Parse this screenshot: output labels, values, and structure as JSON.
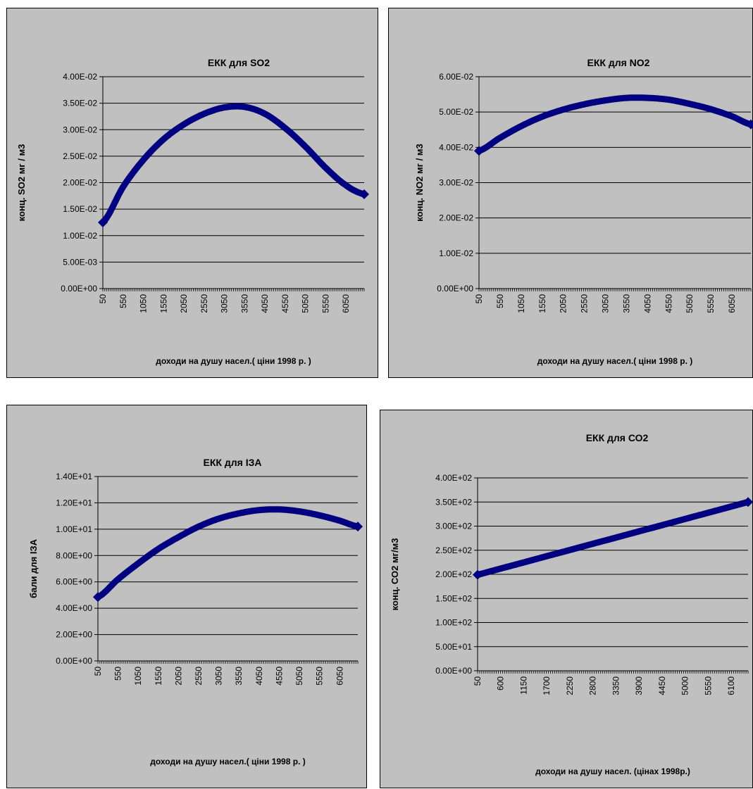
{
  "chart_data": [
    {
      "type": "line",
      "title": "ЕКК для SO2",
      "xlabel": "доходи на душу насел.( ціни 1998 р. )",
      "ylabel": "конц. SO2 мг / м3",
      "yticks": [
        "0.00E+00",
        "5.00E-03",
        "1.00E-02",
        "1.50E-02",
        "2.00E-02",
        "2.50E-02",
        "3.00E-02",
        "3.50E-02",
        "4.00E-02"
      ],
      "xticks": [
        "50",
        "550",
        "1050",
        "1550",
        "2050",
        "2550",
        "3050",
        "3550",
        "4050",
        "4550",
        "5050",
        "5550",
        "6050"
      ],
      "ylim": [
        0,
        0.04
      ],
      "xlim": [
        50,
        6500
      ],
      "grid": true,
      "legend": "none",
      "color": "#000080",
      "series": [
        {
          "x": [
            50,
            550,
            1050,
            1550,
            2050,
            2550,
            3050,
            3550,
            4050,
            4550,
            5050,
            5550,
            6050,
            6500
          ],
          "y": [
            0.0125,
            0.0192,
            0.0243,
            0.0282,
            0.031,
            0.033,
            0.0342,
            0.0343,
            0.033,
            0.0303,
            0.0268,
            0.0228,
            0.0195,
            0.0178
          ]
        }
      ]
    },
    {
      "type": "line",
      "title": "ЕКК для NO2",
      "xlabel": "доходи на душу насел.( ціни 1998 р. )",
      "ylabel": "конц. NO2 мг / м3",
      "yticks": [
        "0.00E+00",
        "1.00E-02",
        "2.00E-02",
        "3.00E-02",
        "4.00E-02",
        "5.00E-02",
        "6.00E-02"
      ],
      "xticks": [
        "50",
        "550",
        "1050",
        "1550",
        "2050",
        "2550",
        "3050",
        "3550",
        "4050",
        "4550",
        "5050",
        "5550",
        "6050"
      ],
      "ylim": [
        0,
        0.06
      ],
      "xlim": [
        50,
        6500
      ],
      "grid": true,
      "legend": "none",
      "color": "#000080",
      "series": [
        {
          "x": [
            50,
            550,
            1050,
            1550,
            2050,
            2550,
            3050,
            3550,
            4050,
            4550,
            5050,
            5550,
            6050,
            6500
          ],
          "y": [
            0.039,
            0.0427,
            0.046,
            0.0487,
            0.0507,
            0.0522,
            0.0533,
            0.054,
            0.054,
            0.0535,
            0.0523,
            0.0508,
            0.0488,
            0.0465
          ]
        }
      ]
    },
    {
      "type": "line",
      "title": "ЕКК для ІЗА",
      "xlabel": "доходи на душу насел.( ціни 1998 р. )",
      "ylabel": "бали для ІЗА",
      "yticks": [
        "0.00E+00",
        "2.00E+00",
        "4.00E+00",
        "6.00E+00",
        "8.00E+00",
        "1.00E+01",
        "1.20E+01",
        "1.40E+01"
      ],
      "xticks": [
        "50",
        "550",
        "1050",
        "1550",
        "2050",
        "2550",
        "3050",
        "3550",
        "4050",
        "4550",
        "5050",
        "5550",
        "6050"
      ],
      "ylim": [
        0,
        14
      ],
      "xlim": [
        50,
        6500
      ],
      "grid": true,
      "legend": "none",
      "color": "#000080",
      "series": [
        {
          "x": [
            50,
            550,
            1050,
            1550,
            2050,
            2550,
            3050,
            3550,
            4050,
            4550,
            5050,
            5550,
            6050,
            6500
          ],
          "y": [
            4.85,
            6.2,
            7.4,
            8.5,
            9.4,
            10.2,
            10.8,
            11.2,
            11.45,
            11.5,
            11.35,
            11.05,
            10.65,
            10.2
          ]
        }
      ]
    },
    {
      "type": "line",
      "title": "ЕКК для СО2",
      "xlabel": "доходи на душу насел. (цінах 1998р.)",
      "ylabel": "конц. СО2 мг/м3",
      "yticks": [
        "0.00E+00",
        "5.00E+01",
        "1.00E+02",
        "1.50E+02",
        "2.00E+02",
        "2.50E+02",
        "3.00E+02",
        "3.50E+02",
        "4.00E+02"
      ],
      "xticks": [
        "50",
        "600",
        "1150",
        "1700",
        "2250",
        "2800",
        "3350",
        "3900",
        "4450",
        "5000",
        "5550",
        "6100"
      ],
      "ylim": [
        0,
        400
      ],
      "xlim": [
        50,
        6500
      ],
      "grid": true,
      "legend": "none",
      "color": "#000080",
      "series": [
        {
          "x": [
            50,
            6500
          ],
          "y": [
            199,
            350
          ]
        }
      ]
    }
  ]
}
